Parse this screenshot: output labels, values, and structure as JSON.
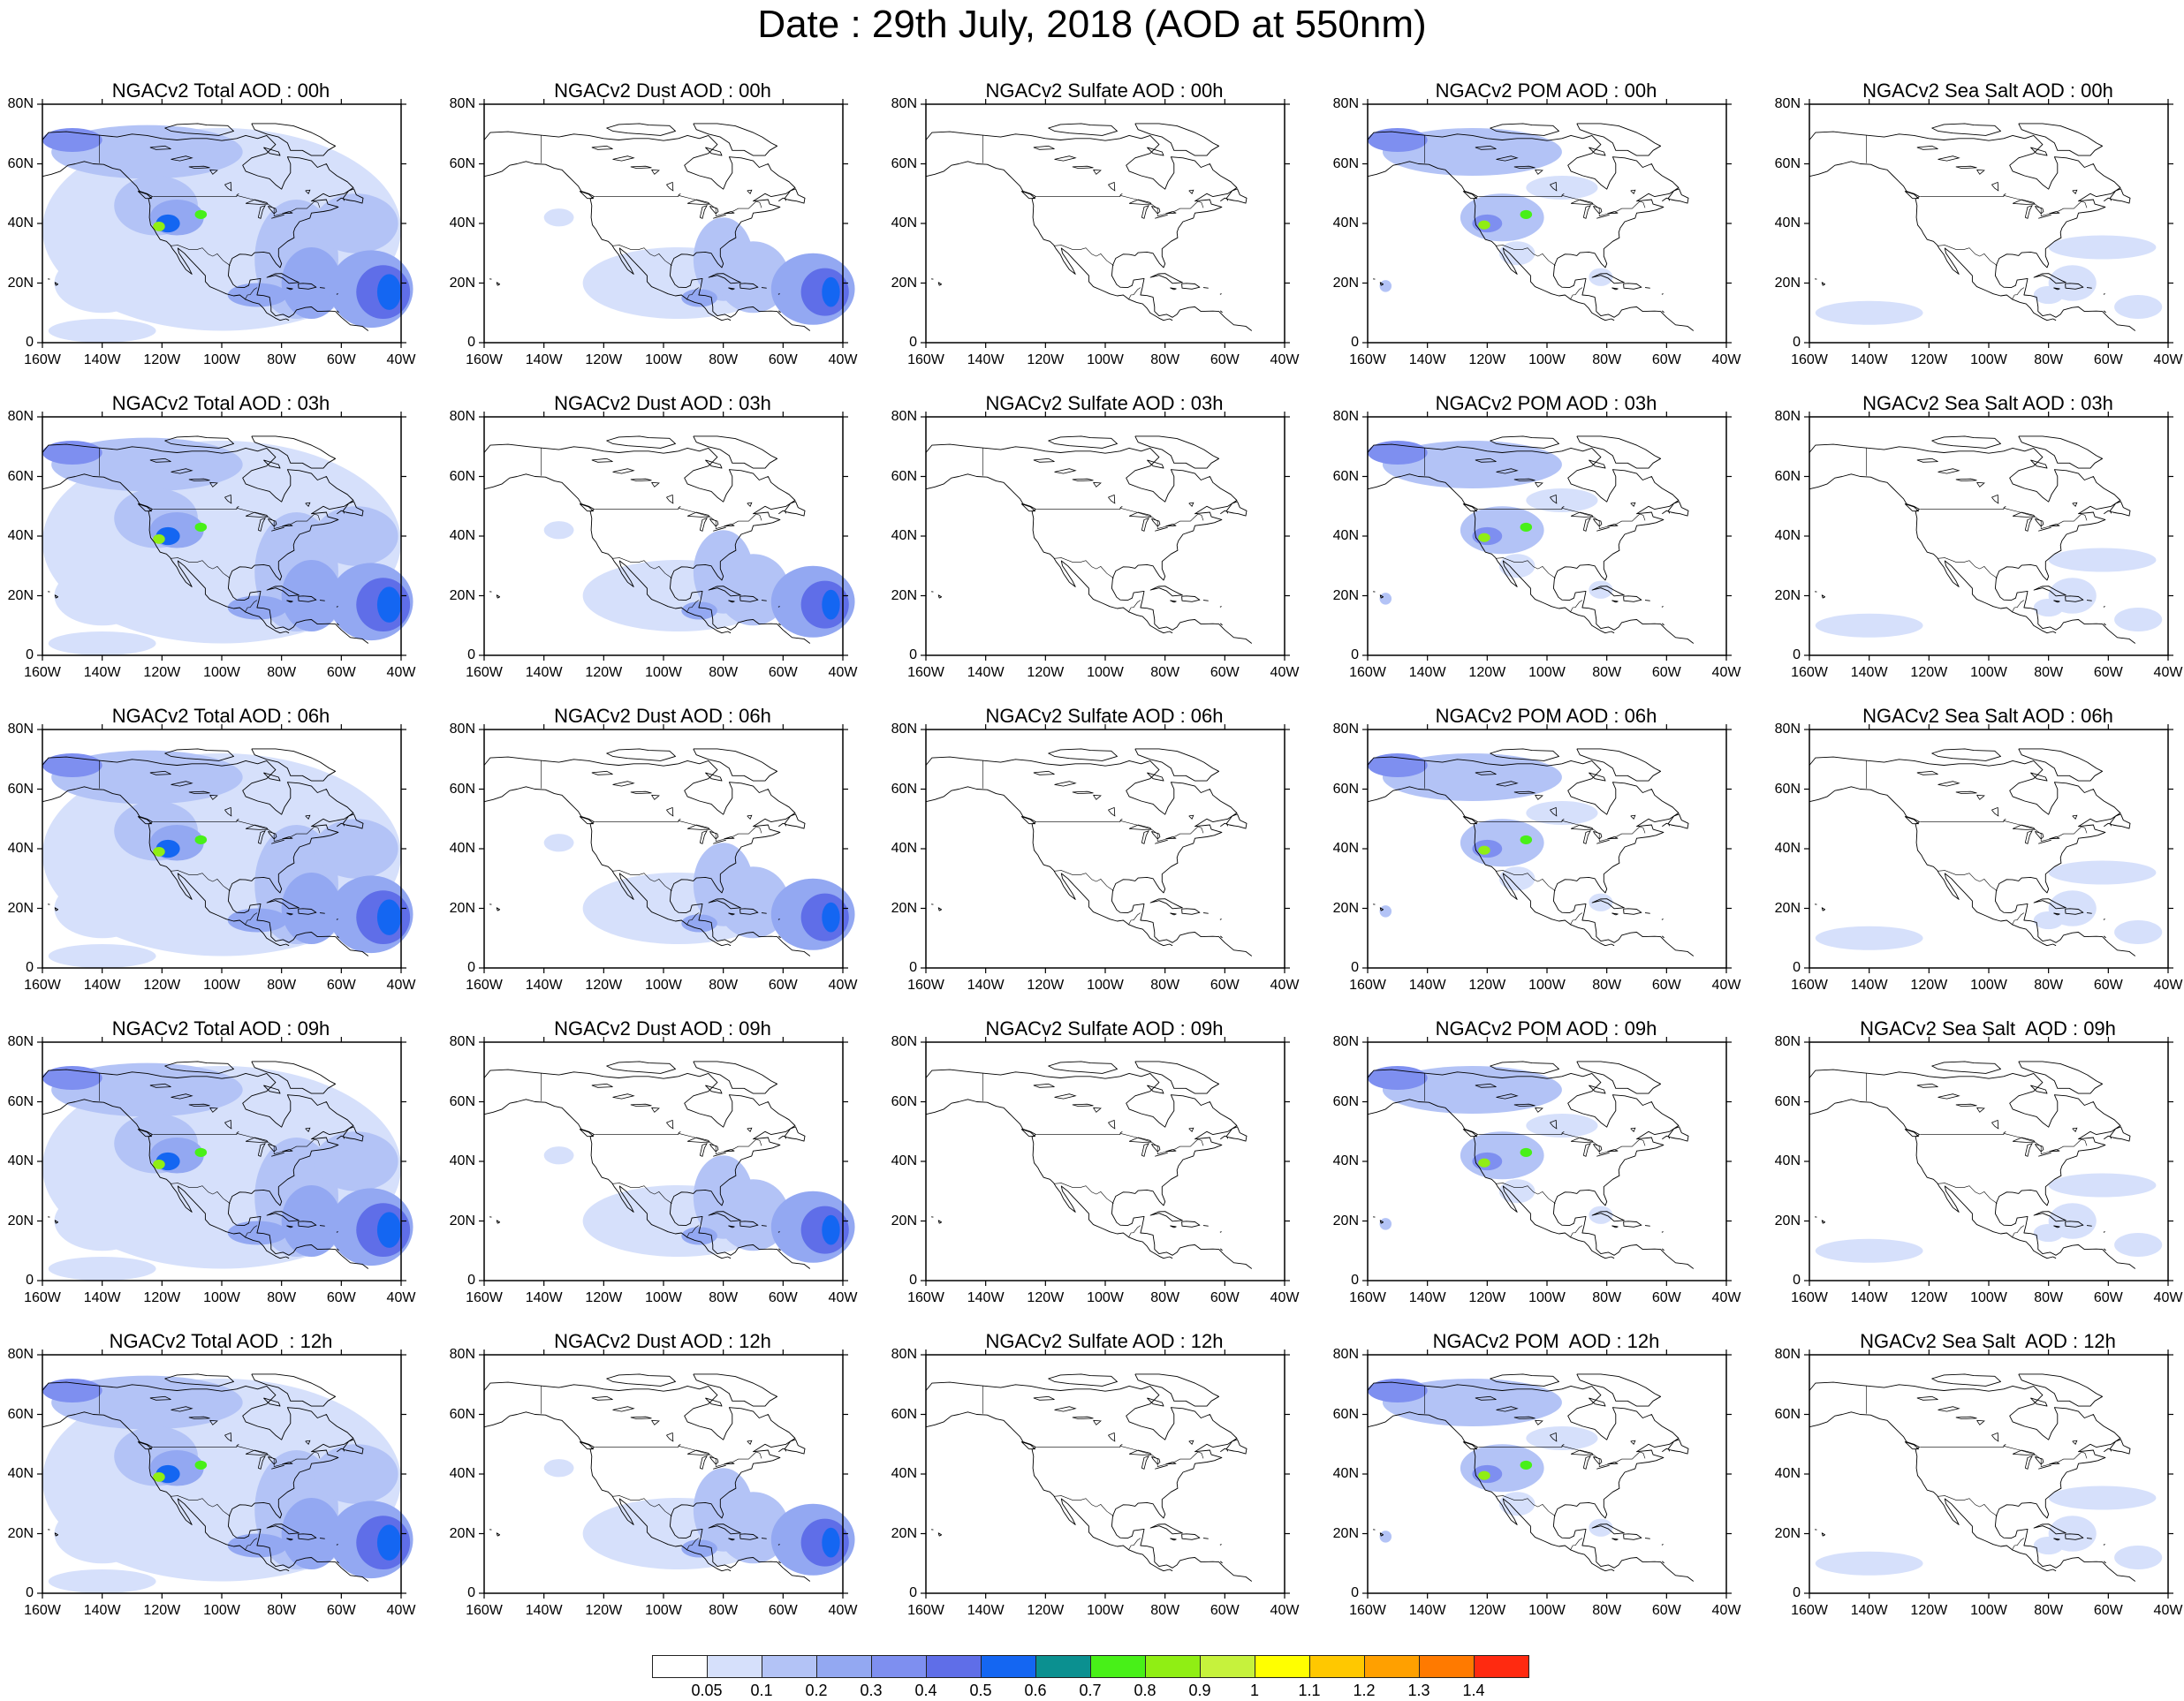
{
  "title": "Date : 29th July, 2018 (AOD at 550nm)",
  "lat_labels": [
    "80N",
    "60N",
    "40N",
    "20N",
    "0"
  ],
  "lon_labels": [
    "160W",
    "140W",
    "120W",
    "100W",
    "80W",
    "60W",
    "40W"
  ],
  "panels": [
    [
      "NGACv2 Total AOD : 00h",
      "NGACv2 Dust AOD : 00h",
      "NGACv2 Sulfate AOD : 00h",
      "NGACv2 POM AOD : 00h",
      "NGACv2 Sea Salt AOD : 00h"
    ],
    [
      "NGACv2 Total AOD : 03h",
      "NGACv2 Dust AOD : 03h",
      "NGACv2 Sulfate AOD : 03h",
      "NGACv2 POM AOD : 03h",
      "NGACv2 Sea Salt AOD : 03h"
    ],
    [
      "NGACv2 Total AOD : 06h",
      "NGACv2 Dust AOD : 06h",
      "NGACv2 Sulfate AOD : 06h",
      "NGACv2 POM AOD : 06h",
      "NGACv2 Sea Salt AOD : 06h"
    ],
    [
      "NGACv2 Total AOD : 09h",
      "NGACv2 Dust AOD : 09h",
      "NGACv2 Sulfate AOD : 09h",
      "NGACv2 POM AOD : 09h",
      "NGACv2 Sea Salt  AOD : 09h"
    ],
    [
      "NGACv2 Total AOD  : 12h",
      "NGACv2 Dust AOD : 12h",
      "NGACv2 Sulfate AOD : 12h",
      "NGACv2 POM  AOD : 12h",
      "NGACv2 Sea Salt  AOD : 12h"
    ]
  ],
  "colorbar": {
    "labels": [
      "0.05",
      "0.1",
      "0.2",
      "0.3",
      "0.4",
      "0.5",
      "0.6",
      "0.7",
      "0.8",
      "0.9",
      "1",
      "1.1",
      "1.2",
      "1.3",
      "1.4"
    ],
    "colors": [
      "#ffffff",
      "#d6e0fb",
      "#b3c3f6",
      "#93a8f2",
      "#7e8ff0",
      "#5f6ee8",
      "#1466f2",
      "#0b9090",
      "#48f018",
      "#90ee14",
      "#c6f23c",
      "#ffff00",
      "#ffc800",
      "#ffa000",
      "#ff7a00",
      "#ff2a10"
    ]
  }
}
